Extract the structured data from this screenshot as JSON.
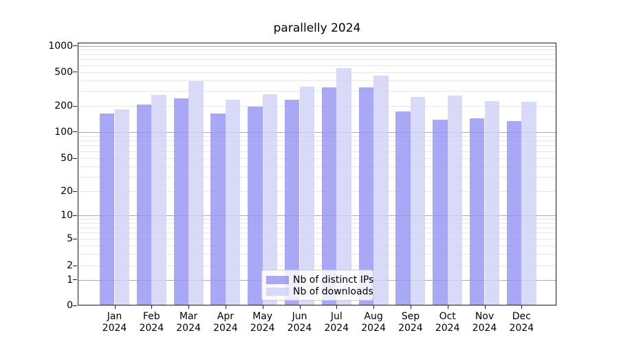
{
  "chart_data": {
    "type": "bar",
    "title": "parallelly 2024",
    "categories": [
      "Jan 2024",
      "Feb 2024",
      "Mar 2024",
      "Apr 2024",
      "May 2024",
      "Jun 2024",
      "Jul 2024",
      "Aug 2024",
      "Sep 2024",
      "Oct 2024",
      "Nov 2024",
      "Dec 2024"
    ],
    "series": [
      {
        "name": "Nb of distinct IPs",
        "color": "#9292f4",
        "fill_alpha": 0.8,
        "values": [
          162,
          209,
          244,
          163,
          195,
          235,
          332,
          329,
          172,
          139,
          144,
          134
        ]
      },
      {
        "name": "Nb of downloads",
        "color": "#d0d0f6",
        "fill_alpha": 0.8,
        "values": [
          182,
          268,
          390,
          236,
          275,
          336,
          552,
          450,
          254,
          264,
          228,
          222
        ]
      }
    ],
    "y_ticks": [
      0,
      1,
      2,
      5,
      10,
      20,
      50,
      100,
      200,
      500,
      1000
    ],
    "y_scale": "symlog",
    "ylim": [
      0,
      1100
    ],
    "grid": true,
    "legend_position": "lower center"
  }
}
